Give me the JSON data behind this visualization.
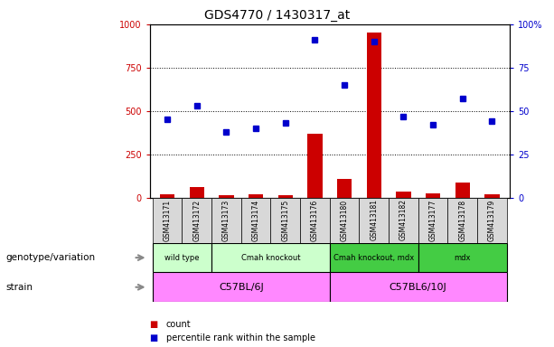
{
  "title": "GDS4770 / 1430317_at",
  "samples": [
    "GSM413171",
    "GSM413172",
    "GSM413173",
    "GSM413174",
    "GSM413175",
    "GSM413176",
    "GSM413180",
    "GSM413181",
    "GSM413182",
    "GSM413177",
    "GSM413178",
    "GSM413179"
  ],
  "counts": [
    20,
    60,
    15,
    18,
    16,
    370,
    110,
    950,
    35,
    25,
    90,
    20
  ],
  "percentile_right": [
    45,
    53,
    38,
    40,
    43,
    91,
    65,
    90,
    47,
    42,
    57,
    44
  ],
  "left_ylim": [
    0,
    1000
  ],
  "right_ylim": [
    0,
    100
  ],
  "left_yticks": [
    0,
    250,
    500,
    750,
    1000
  ],
  "right_yticks": [
    0,
    25,
    50,
    75,
    100
  ],
  "left_yticklabels": [
    "0",
    "250",
    "500",
    "750",
    "1000"
  ],
  "right_yticklabels": [
    "0",
    "25",
    "50",
    "75",
    "100%"
  ],
  "right_ytick0_label": "0",
  "bar_color": "#cc0000",
  "dot_color": "#0000cc",
  "geno_groups": [
    {
      "label": "wild type",
      "start": 0,
      "end": 1,
      "color": "#ccffcc"
    },
    {
      "label": "Cmah knockout",
      "start": 2,
      "end": 5,
      "color": "#ccffcc"
    },
    {
      "label": "Cmah knockout, mdx",
      "start": 6,
      "end": 8,
      "color": "#44cc44"
    },
    {
      "label": "mdx",
      "start": 9,
      "end": 11,
      "color": "#44cc44"
    }
  ],
  "strain_groups": [
    {
      "label": "C57BL/6J",
      "start": 0,
      "end": 5,
      "color": "#ff88ff"
    },
    {
      "label": "C57BL6/10J",
      "start": 6,
      "end": 11,
      "color": "#ff88ff"
    }
  ],
  "genotype_label": "genotype/variation",
  "strain_label": "strain",
  "legend_count": "count",
  "legend_percentile": "percentile rank within the sample",
  "bg_color": "#ffffff",
  "sample_area_color": "#d8d8d8"
}
